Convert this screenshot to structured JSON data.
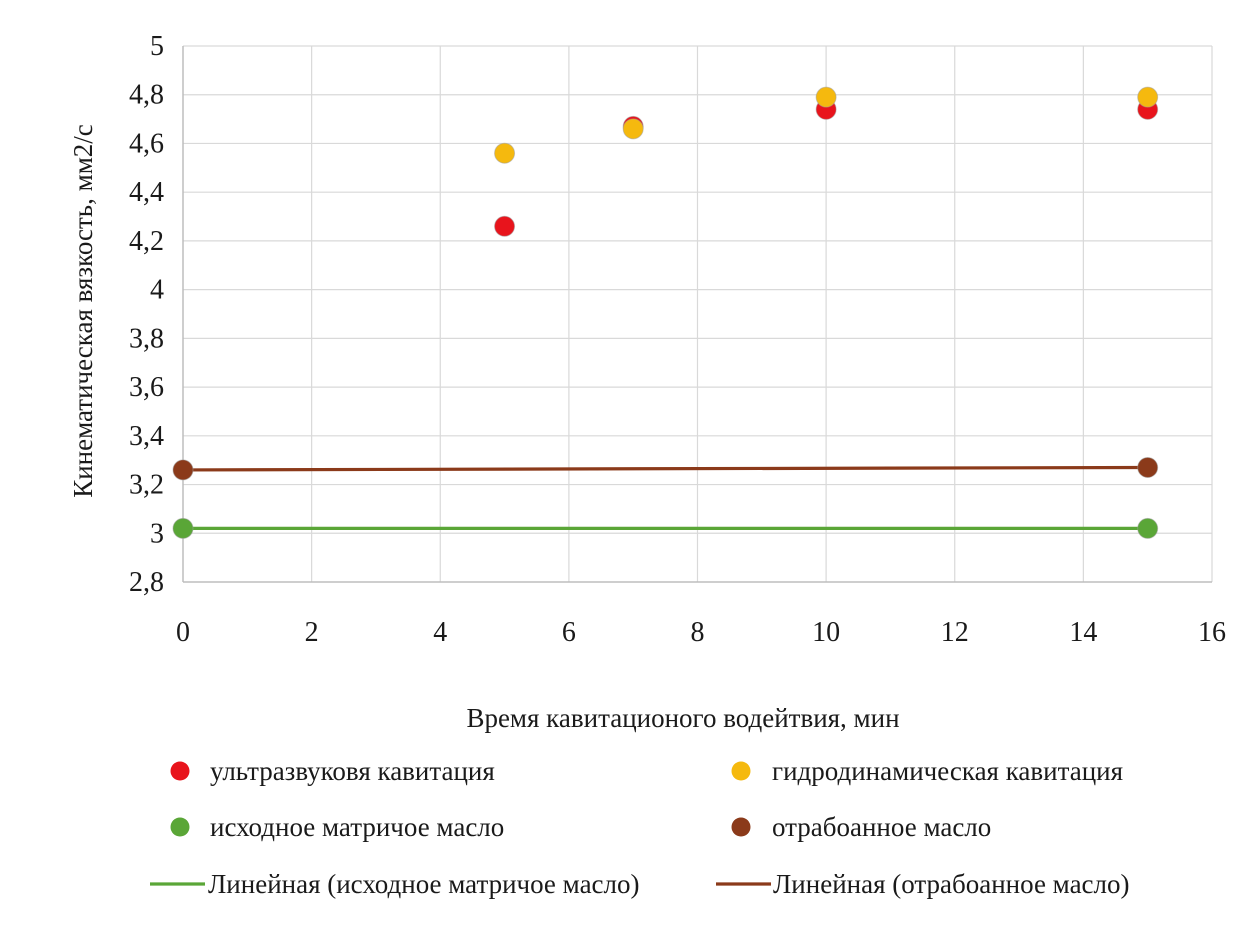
{
  "chart_data": {
    "type": "scatter",
    "xlabel": "Время кавитационого водейтвия, мин",
    "ylabel": "Кинематическая вязкость, мм2/с",
    "xlim": [
      0,
      16
    ],
    "ylim": [
      2.8,
      5
    ],
    "x_ticks": [
      "0",
      "2",
      "4",
      "6",
      "8",
      "10",
      "12",
      "14",
      "16"
    ],
    "y_ticks": [
      "2,8",
      "3",
      "3,2",
      "3,4",
      "3,6",
      "3,8",
      "4",
      "4,2",
      "4,4",
      "4,6",
      "4,8",
      "5"
    ],
    "x_tick_values": [
      0,
      2,
      4,
      6,
      8,
      10,
      12,
      14,
      16
    ],
    "y_tick_values": [
      2.8,
      3.0,
      3.2,
      3.4,
      3.6,
      3.8,
      4.0,
      4.2,
      4.4,
      4.6,
      4.8,
      5.0
    ],
    "grid": true,
    "legend_position": "bottom",
    "series": [
      {
        "name": "ультразвуковя кавитация",
        "kind": "scatter",
        "color": "#e8141c",
        "x": [
          5,
          7,
          10,
          15
        ],
        "y": [
          4.26,
          4.67,
          4.74,
          4.74
        ]
      },
      {
        "name": "гидродинамическая кавитация",
        "kind": "scatter",
        "color": "#f5b90e",
        "x": [
          5,
          7,
          10,
          15
        ],
        "y": [
          4.56,
          4.66,
          4.79,
          4.79
        ]
      },
      {
        "name": "исходное матричое масло",
        "kind": "scatter",
        "color": "#5aa637",
        "x": [
          0,
          15
        ],
        "y": [
          3.02,
          3.02
        ]
      },
      {
        "name": "отрабоанное масло",
        "kind": "scatter",
        "color": "#8b3a1a",
        "x": [
          0,
          15
        ],
        "y": [
          3.26,
          3.27
        ]
      },
      {
        "name": "Линейная (исходное матричое масло)",
        "kind": "trendline",
        "color": "#5aa637",
        "x": [
          0,
          15
        ],
        "y": [
          3.02,
          3.02
        ]
      },
      {
        "name": "Линейная (отрабоанное масло)",
        "kind": "trendline",
        "color": "#8b3a1a",
        "x": [
          0,
          15
        ],
        "y": [
          3.26,
          3.27
        ]
      }
    ]
  }
}
